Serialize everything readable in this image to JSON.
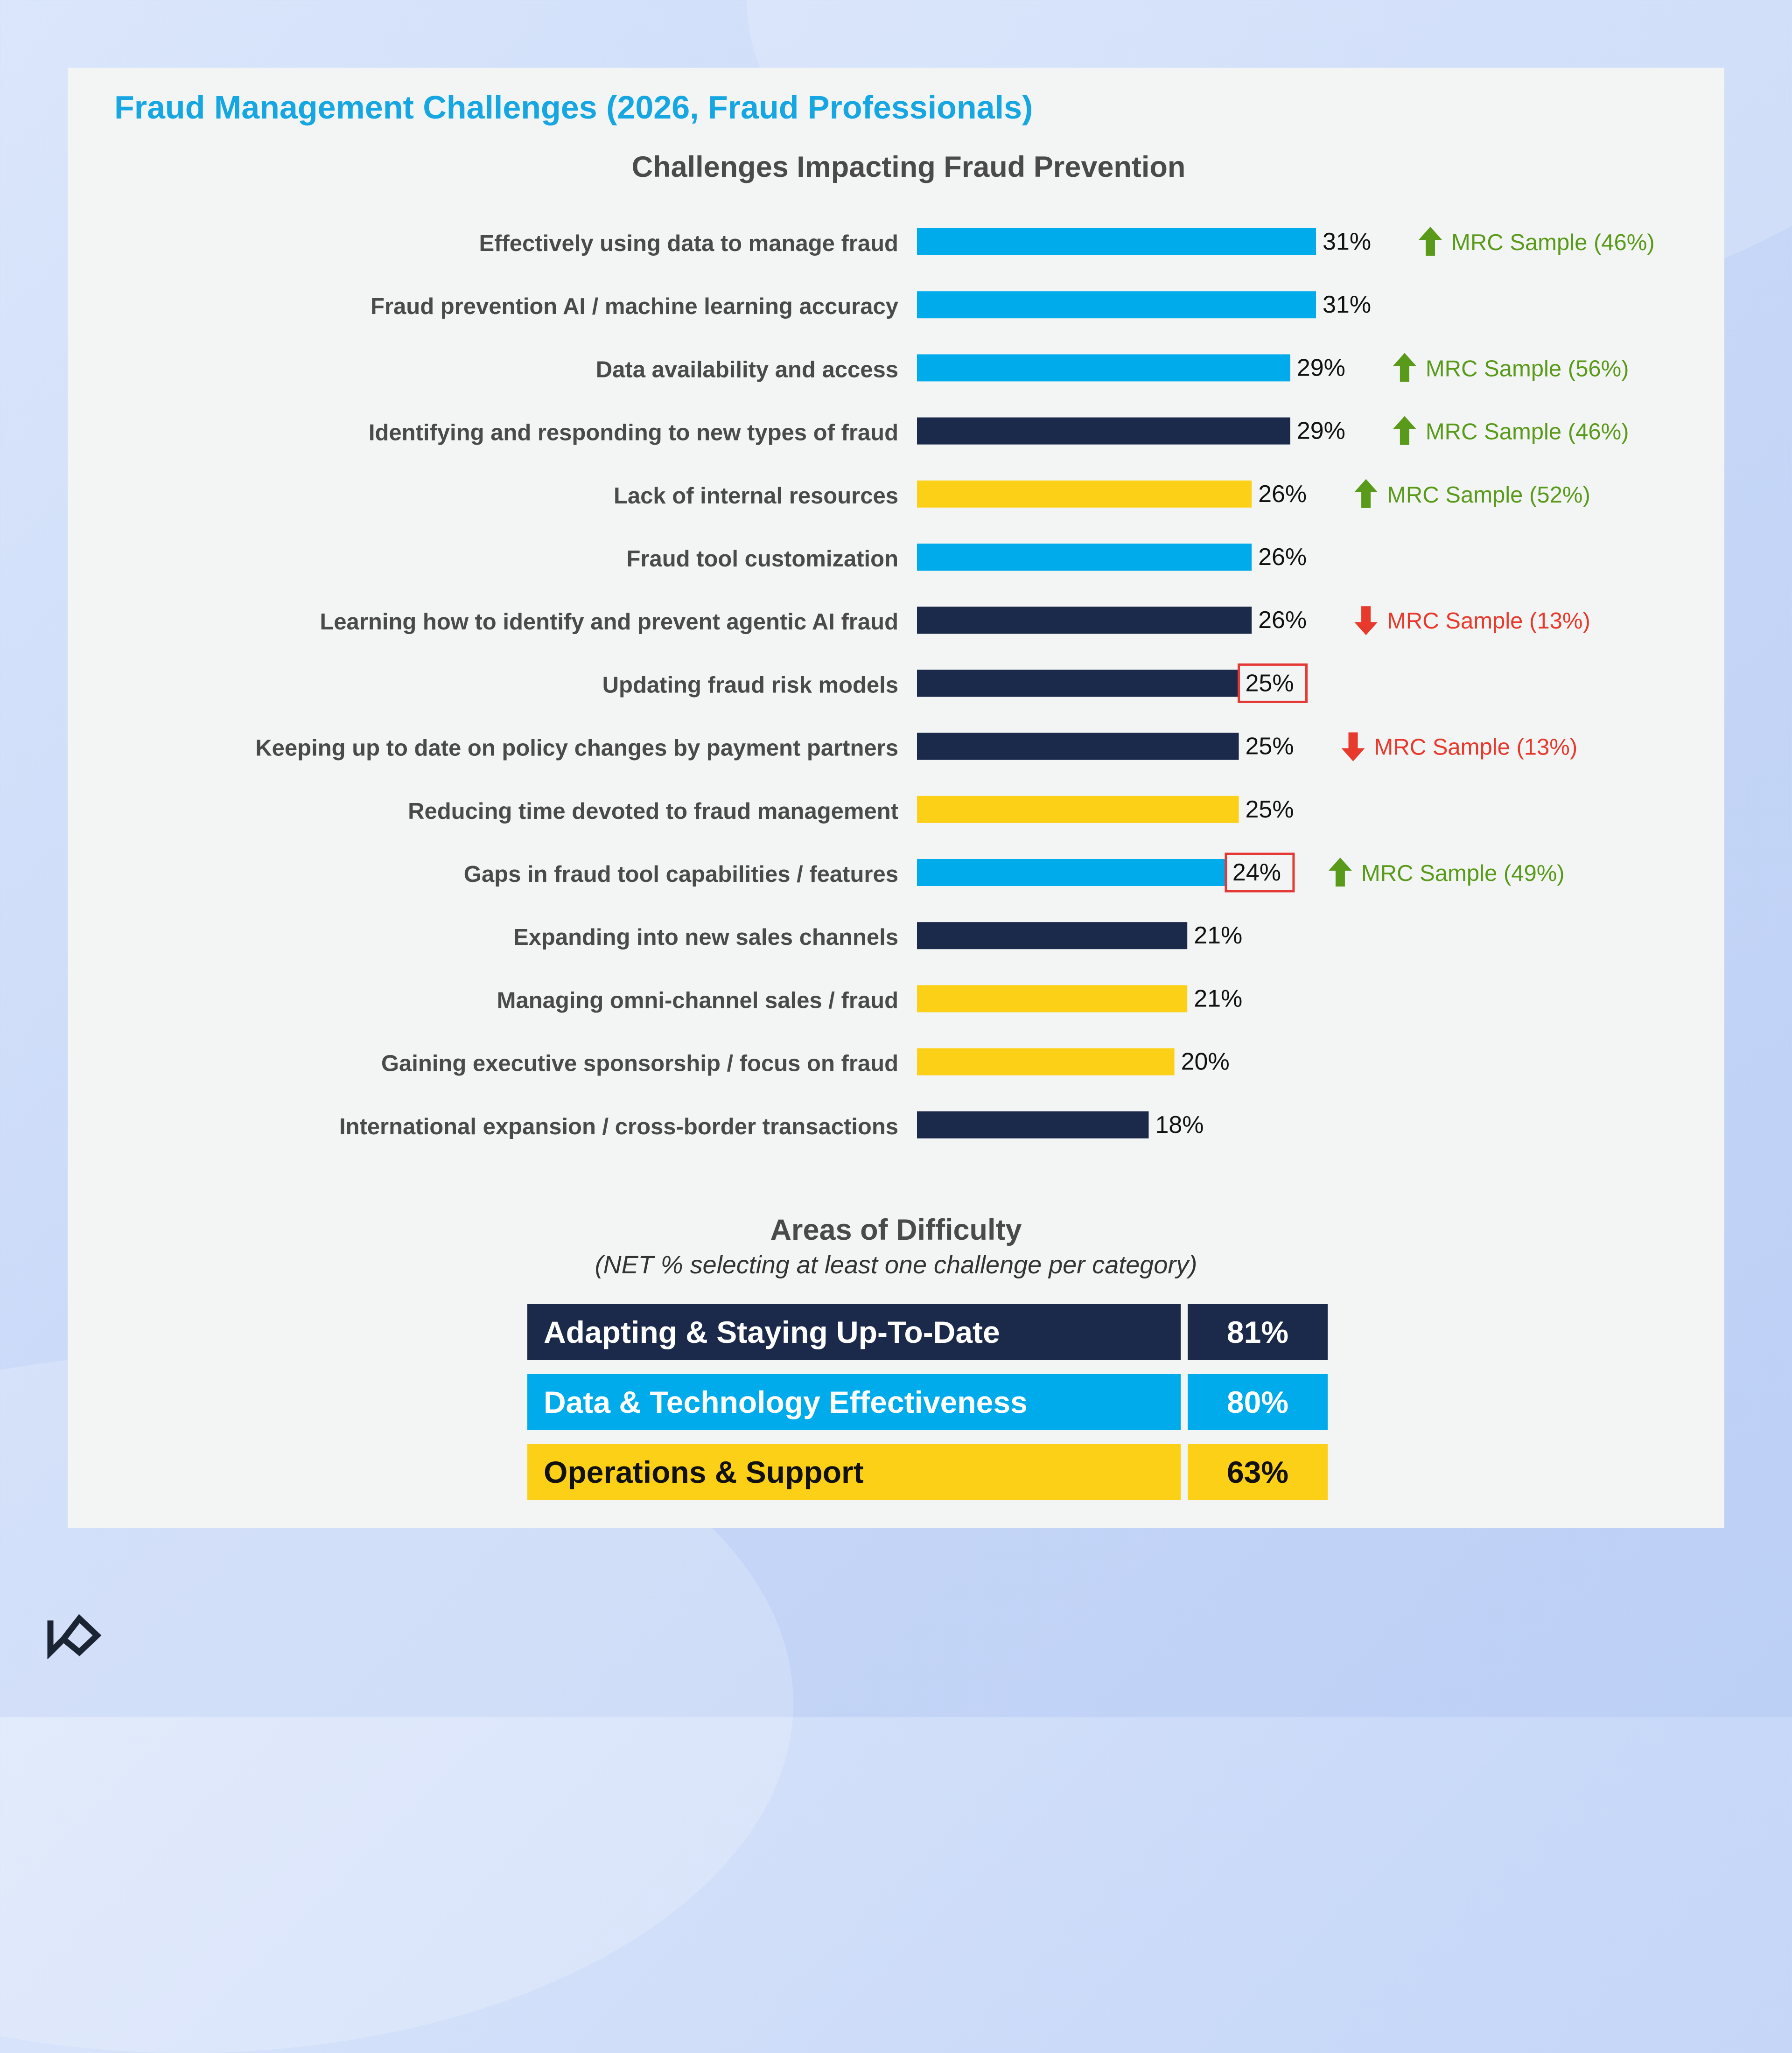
{
  "colors": {
    "blue": "#00abec",
    "navy": "#1b2a4a",
    "yellow": "#fcd016",
    "up_green": "#5a9a1a",
    "down_red": "#e8392d",
    "title_blue": "#16a6e2",
    "highlight_box": "#e53935"
  },
  "page": {
    "title": "Fraud Management Challenges (2026, Fraud Professionals)"
  },
  "chart_data": {
    "type": "bar",
    "orientation": "horizontal",
    "title": "Challenges Impacting Fraud Prevention",
    "xlim": [
      0,
      31
    ],
    "grid": false,
    "categories": [
      "Effectively using data to manage fraud",
      "Fraud prevention AI / machine learning accuracy",
      "Data availability and access",
      "Identifying and responding to new types of fraud",
      "Lack of internal resources",
      "Fraud tool customization",
      "Learning how to identify and prevent agentic AI fraud",
      "Updating fraud risk models",
      "Keeping up to date on policy changes by payment partners",
      "Reducing time devoted to fraud management",
      "Gaps in fraud tool capabilities / features",
      "Expanding into new sales channels",
      "Managing omni-channel sales / fraud",
      "Gaining executive sponsorship / focus on fraud",
      "International expansion / cross-border transactions"
    ],
    "values": [
      31,
      31,
      29,
      29,
      26,
      26,
      26,
      25,
      25,
      25,
      24,
      21,
      21,
      20,
      18
    ],
    "value_labels": [
      "31%",
      "31%",
      "29%",
      "29%",
      "26%",
      "26%",
      "26%",
      "25%",
      "25%",
      "25%",
      "24%",
      "21%",
      "21%",
      "20%",
      "18%"
    ],
    "bar_categories": [
      "data",
      "data",
      "data",
      "adapt",
      "ops",
      "data",
      "adapt",
      "adapt",
      "adapt",
      "ops",
      "data",
      "adapt",
      "ops",
      "ops",
      "adapt"
    ],
    "highlighted": [
      false,
      false,
      false,
      false,
      false,
      false,
      false,
      true,
      false,
      false,
      true,
      false,
      false,
      false,
      false
    ],
    "annotations": [
      {
        "index": 0,
        "direction": "up",
        "text": "MRC Sample (46%)"
      },
      {
        "index": 2,
        "direction": "up",
        "text": "MRC Sample (56%)"
      },
      {
        "index": 3,
        "direction": "up",
        "text": "MRC Sample (46%)"
      },
      {
        "index": 4,
        "direction": "up",
        "text": "MRC Sample (52%)"
      },
      {
        "index": 6,
        "direction": "down",
        "text": "MRC Sample (13%)"
      },
      {
        "index": 8,
        "direction": "down",
        "text": "MRC Sample (13%)"
      },
      {
        "index": 10,
        "direction": "up",
        "text": "MRC Sample (49%)"
      }
    ]
  },
  "difficulty": {
    "title": "Areas of Difficulty",
    "subtitle": "(NET % selecting at least one challenge per category)",
    "rows": [
      {
        "key": "adapt",
        "label": "Adapting & Staying Up-To-Date",
        "value": "81%"
      },
      {
        "key": "data",
        "label": "Data & Technology Effectiveness",
        "value": "80%"
      },
      {
        "key": "ops",
        "label": "Operations & Support",
        "value": "63%"
      }
    ]
  },
  "footer": {
    "logo_icon": "brand-logo-icon"
  }
}
